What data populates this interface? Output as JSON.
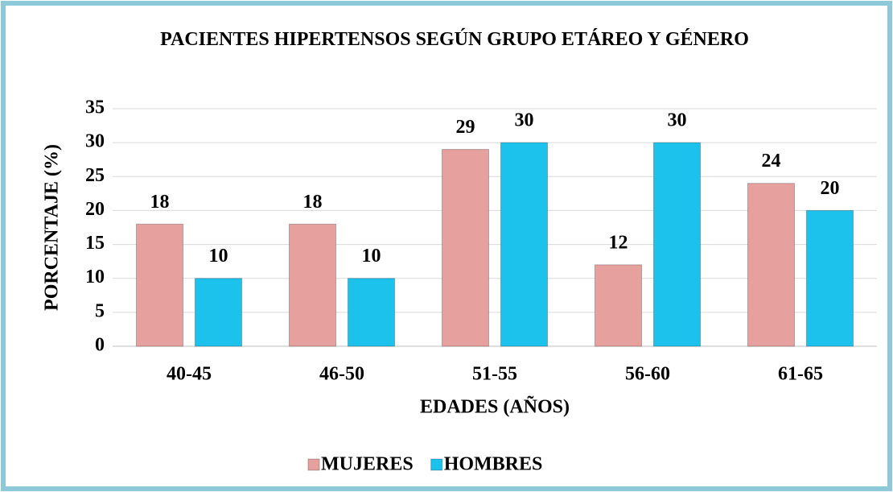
{
  "chart_data": {
    "type": "bar",
    "title": "PACIENTES HIPERTENSOS SEGÚN GRUPO ETÁREO Y GÉNERO",
    "x_label": "EDADES (AÑOS)",
    "y_label": "PORCENTAJE (%)",
    "categories": [
      "40-45",
      "46-50",
      "51-55",
      "56-60",
      "61-65"
    ],
    "series": [
      {
        "name": "MUJERES",
        "color": "#e6a19f",
        "values": [
          18,
          18,
          29,
          12,
          24
        ]
      },
      {
        "name": "HOMBRES",
        "color": "#1cc2ec",
        "values": [
          10,
          10,
          30,
          30,
          20
        ]
      }
    ],
    "ylim": [
      0,
      35
    ],
    "yticks": [
      0,
      5,
      10,
      15,
      20,
      25,
      30,
      35
    ],
    "grid": true,
    "legend": "bottom"
  }
}
